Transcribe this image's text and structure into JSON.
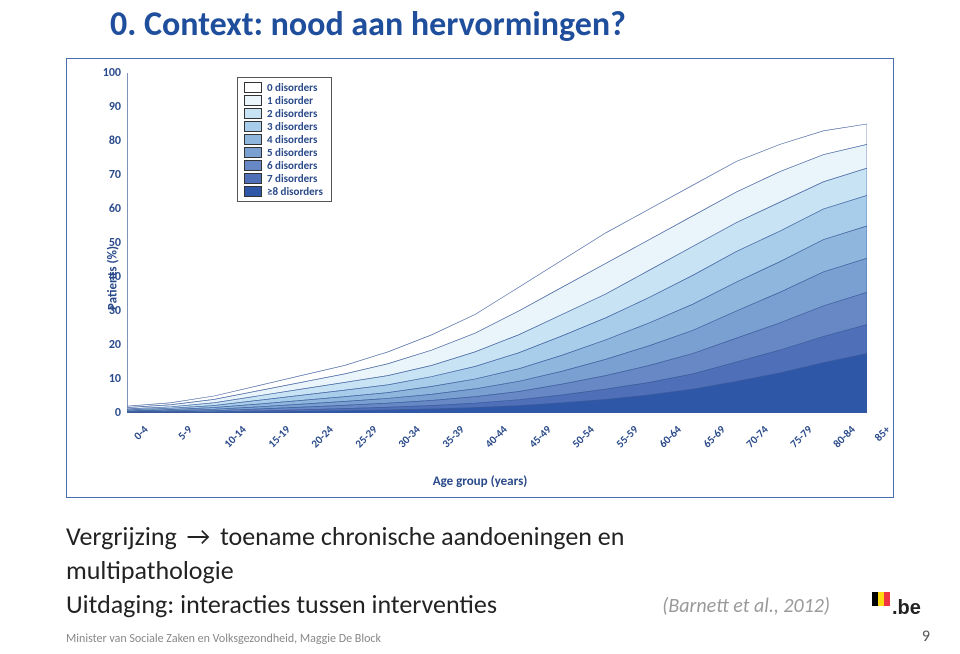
{
  "title": "0. Context: nood aan hervormingen?",
  "body": {
    "line1_prefix": "Vergrijzing",
    "arrow": "→",
    "line1_suffix": "toename chronische aandoeningen en",
    "line2": "multipathologie",
    "line3": "Uitdaging: interacties tussen interventies"
  },
  "citation": "(Barnett et al., 2012)",
  "footer": "Minister van Sociale Zaken en Volksgezondheid, Maggie De Block",
  "page_number": "9",
  "chart": {
    "type": "stacked-area",
    "y_label": "Patients (%)",
    "x_label": "Age group (years)",
    "ylim": [
      0,
      100
    ],
    "ytick_step": 10,
    "background_color": "#ffffff",
    "axis_color": "#2a4a8a",
    "categories": [
      "0-4",
      "5-9",
      "10-14",
      "15-19",
      "20-24",
      "25-29",
      "30-34",
      "35-39",
      "40-44",
      "45-49",
      "50-54",
      "55-59",
      "60-64",
      "65-69",
      "70-74",
      "75-79",
      "80-84",
      "85+"
    ],
    "series": [
      {
        "label": "0 disorders",
        "color": "#ffffff"
      },
      {
        "label": "1 disorder",
        "color": "#eaf4fb"
      },
      {
        "label": "2 disorders",
        "color": "#c7e3f4"
      },
      {
        "label": "3 disorders",
        "color": "#a8cdea"
      },
      {
        "label": "4 disorders",
        "color": "#8fb6dd"
      },
      {
        "label": "5 disorders",
        "color": "#7a9fd1"
      },
      {
        "label": "6 disorders",
        "color": "#6788c5"
      },
      {
        "label": "7 disorders",
        "color": "#4f70b8"
      },
      {
        "label": "≥8 disorders",
        "color": "#2f57a8"
      }
    ],
    "cumulative_tops_from_bottom": [
      [
        2,
        3,
        5,
        8,
        11,
        14,
        18,
        23,
        29,
        37,
        45,
        53,
        60,
        67,
        74,
        79,
        83,
        85
      ],
      [
        1.6,
        2.4,
        4,
        6.5,
        9,
        11.5,
        14.5,
        18.5,
        23.5,
        30,
        37,
        44,
        51,
        58,
        65,
        71,
        76,
        79
      ],
      [
        1.2,
        1.8,
        3,
        5,
        7,
        9,
        11,
        14,
        18,
        23,
        29,
        35,
        42,
        49,
        56,
        62,
        68,
        72
      ],
      [
        0.9,
        1.4,
        2.2,
        3.7,
        5.2,
        6.7,
        8.3,
        10.7,
        13.7,
        17.7,
        22.7,
        28,
        34,
        40.5,
        47.5,
        53.5,
        60,
        64
      ],
      [
        0.6,
        1,
        1.6,
        2.6,
        3.7,
        4.8,
        6,
        7.8,
        10,
        13,
        17,
        21.5,
        26.5,
        32,
        38.5,
        44.5,
        51,
        55
      ],
      [
        0.4,
        0.7,
        1.1,
        1.8,
        2.6,
        3.4,
        4.3,
        5.5,
        7.1,
        9.3,
        12.3,
        15.8,
        19.8,
        24.3,
        30,
        35.5,
        41.5,
        45.5
      ],
      [
        0.25,
        0.45,
        0.7,
        1.15,
        1.7,
        2.25,
        2.9,
        3.7,
        4.8,
        6.3,
        8.5,
        11,
        14,
        17.5,
        22,
        26.5,
        31.5,
        35.5
      ],
      [
        0.13,
        0.23,
        0.37,
        0.62,
        0.95,
        1.3,
        1.7,
        2.2,
        2.9,
        3.9,
        5.3,
        7,
        9,
        11.5,
        15,
        18.5,
        22.5,
        26
      ],
      [
        0.05,
        0.1,
        0.17,
        0.3,
        0.47,
        0.67,
        0.9,
        1.2,
        1.6,
        2.15,
        3,
        4,
        5.3,
        7,
        9.3,
        11.8,
        14.8,
        17.5
      ]
    ]
  },
  "logo": {
    "flag": [
      "#000000",
      "#ffd90f",
      "#ef3340"
    ],
    "text": ".be",
    "text_color": "#222222"
  }
}
